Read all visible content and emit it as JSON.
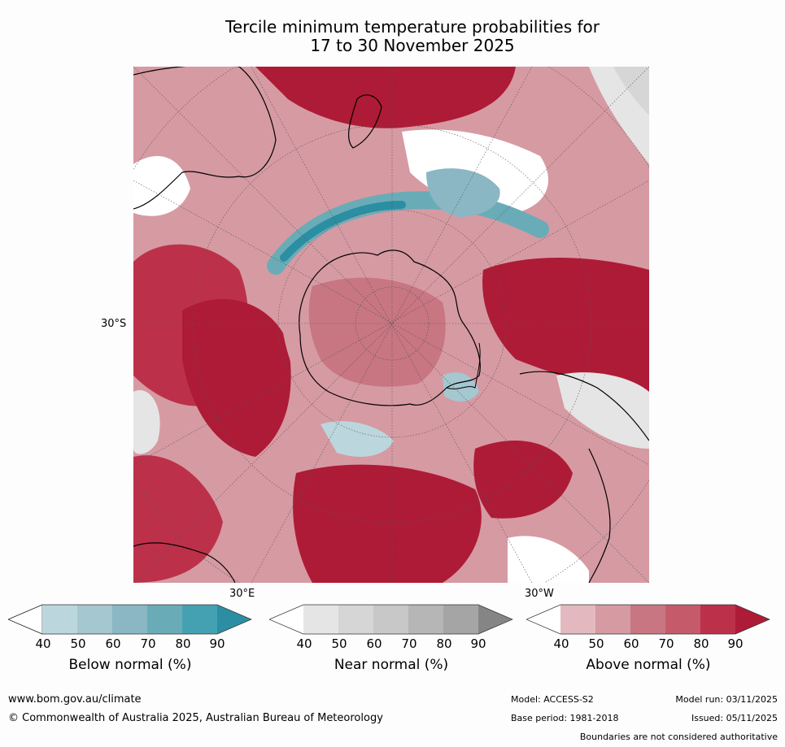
{
  "title": {
    "line1": "Tercile minimum temperature probabilities for",
    "line2": "17 to 30 November 2025"
  },
  "map": {
    "projection": "south-polar-stereographic",
    "lat_label": "30°S",
    "lon_labels": {
      "east": "30°E",
      "west": "30°W"
    }
  },
  "colors": {
    "below": [
      "#ffffff",
      "#bcd6dd",
      "#a5c7cf",
      "#8ab7c3",
      "#69acb8",
      "#44a1b2",
      "#2c8ea2"
    ],
    "near": [
      "#ffffff",
      "#e5e5e5",
      "#d6d6d6",
      "#c8c8c8",
      "#b6b6b6",
      "#a5a5a5",
      "#858585"
    ],
    "above": [
      "#ffffff",
      "#e3b9bf",
      "#d69aa3",
      "#c77682",
      "#c55b6a",
      "#bc3149",
      "#ae1b36"
    ]
  },
  "colorbars": [
    {
      "label": "Below normal (%)",
      "ticks": [
        "40",
        "50",
        "60",
        "70",
        "80",
        "90"
      ]
    },
    {
      "label": "Near normal (%)",
      "ticks": [
        "40",
        "50",
        "60",
        "70",
        "80",
        "90"
      ]
    },
    {
      "label": "Above normal (%)",
      "ticks": [
        "40",
        "50",
        "60",
        "70",
        "80",
        "90"
      ]
    }
  ],
  "footer": {
    "website": "www.bom.gov.au/climate",
    "copyright": "© Commonwealth of Australia 2025, Australian Bureau of Meteorology",
    "model": "Model: ACCESS-S2",
    "base_period": "Base period: 1981-2018",
    "model_run": "Model run: 03/11/2025",
    "issued": "Issued: 05/11/2025",
    "disclaimer": "Boundaries are not considered authoritative"
  }
}
